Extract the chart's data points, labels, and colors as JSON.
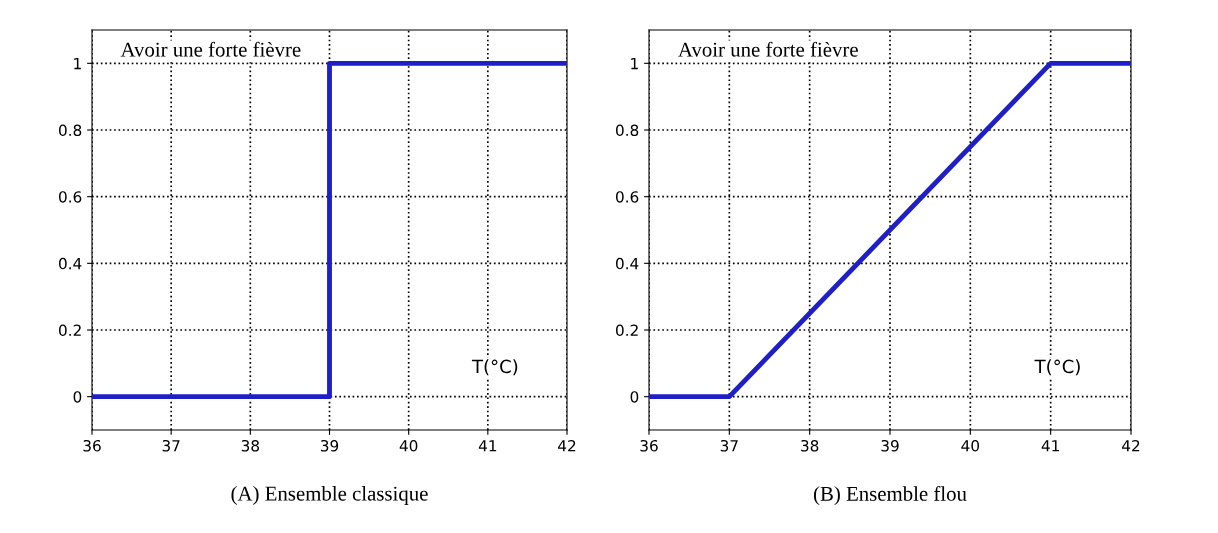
{
  "chart_data": [
    {
      "type": "line",
      "title": "Avoir une forte fièvre",
      "xlabel": "T(°C)",
      "x": [
        36,
        39,
        39,
        42
      ],
      "series": [
        {
          "color": "#1f1fc8",
          "values": [
            0,
            0,
            1,
            1
          ]
        }
      ],
      "xlim": [
        36,
        42
      ],
      "xticks": [
        36,
        37,
        38,
        39,
        40,
        41,
        42
      ],
      "ylim": [
        -0.1,
        1.1
      ],
      "yticks": [
        0,
        0.2,
        0.4,
        0.6,
        0.8,
        1
      ],
      "grid": true,
      "line_style": "solid",
      "annotations": [
        "(A) Ensemble classique"
      ]
    },
    {
      "type": "line",
      "title": "Avoir une forte fièvre",
      "xlabel": "T(°C)",
      "x": [
        36,
        37,
        41,
        42
      ],
      "series": [
        {
          "color": "#1f1fc8",
          "values": [
            0,
            0,
            1,
            1
          ]
        }
      ],
      "xlim": [
        36,
        42
      ],
      "xticks": [
        36,
        37,
        38,
        39,
        40,
        41,
        42
      ],
      "ylim": [
        -0.1,
        1.1
      ],
      "yticks": [
        0,
        0.2,
        0.4,
        0.6,
        0.8,
        1
      ],
      "grid": true,
      "line_style": "solid",
      "annotations": [
        "(B) Ensemble flou"
      ]
    }
  ]
}
